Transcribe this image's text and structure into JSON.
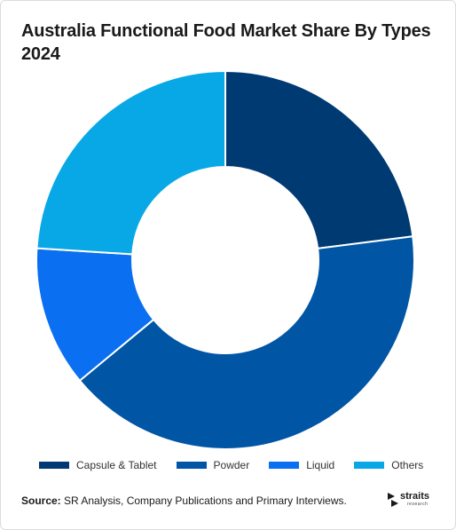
{
  "title": "Australia Functional Food Market Share By Types 2024",
  "source_label": "Source:",
  "source_text": " SR Analysis, Company Publications and Primary Interviews.",
  "logo": {
    "name": "straits",
    "sub": "research"
  },
  "chart_data": {
    "type": "donut",
    "categories": [
      "Capsule & Tablet",
      "Powder",
      "Liquid",
      "Others"
    ],
    "values": [
      23.0,
      41.0,
      12.0,
      24.0
    ],
    "colors": [
      "#003a73",
      "#0055a5",
      "#0a6ff0",
      "#08a8e6"
    ],
    "legend_position": "bottom"
  }
}
